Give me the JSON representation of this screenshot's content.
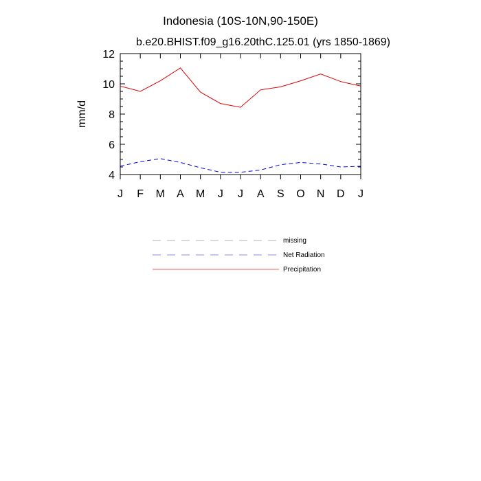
{
  "chart_data": {
    "type": "line",
    "title": "Indonesia (10S-10N,90-150E)",
    "subtitle": "b.e20.BHIST.f09_g16.20thC.125.01 (yrs 1850-1869)",
    "xlabel": "",
    "ylabel": "mm/d",
    "categories": [
      "J",
      "F",
      "M",
      "A",
      "M",
      "J",
      "J",
      "A",
      "S",
      "O",
      "N",
      "D",
      "J"
    ],
    "ylim": [
      4,
      12
    ],
    "yticks": [
      4,
      6,
      8,
      10,
      12
    ],
    "grid": false,
    "legend_position": "below",
    "series": [
      {
        "name": "Precipitation",
        "color": "#e00000",
        "dash": "solid",
        "values": [
          9.85,
          9.5,
          10.2,
          11.05,
          9.45,
          8.7,
          8.45,
          9.6,
          9.8,
          10.2,
          10.65,
          10.15,
          9.85
        ]
      },
      {
        "name": "Net Radiation",
        "color": "#0000e0",
        "dash": "dashed",
        "values": [
          4.55,
          4.85,
          5.05,
          4.8,
          4.45,
          4.15,
          4.15,
          4.3,
          4.65,
          4.8,
          4.7,
          4.5,
          4.55
        ]
      }
    ],
    "legend": [
      {
        "label": "missing",
        "color": "#808080",
        "dash": "dashed"
      },
      {
        "label": "Net Radiation",
        "color": "#4040e0",
        "dash": "dashed"
      },
      {
        "label": "Precipitation",
        "color": "#e00000",
        "dash": "solid"
      }
    ]
  }
}
